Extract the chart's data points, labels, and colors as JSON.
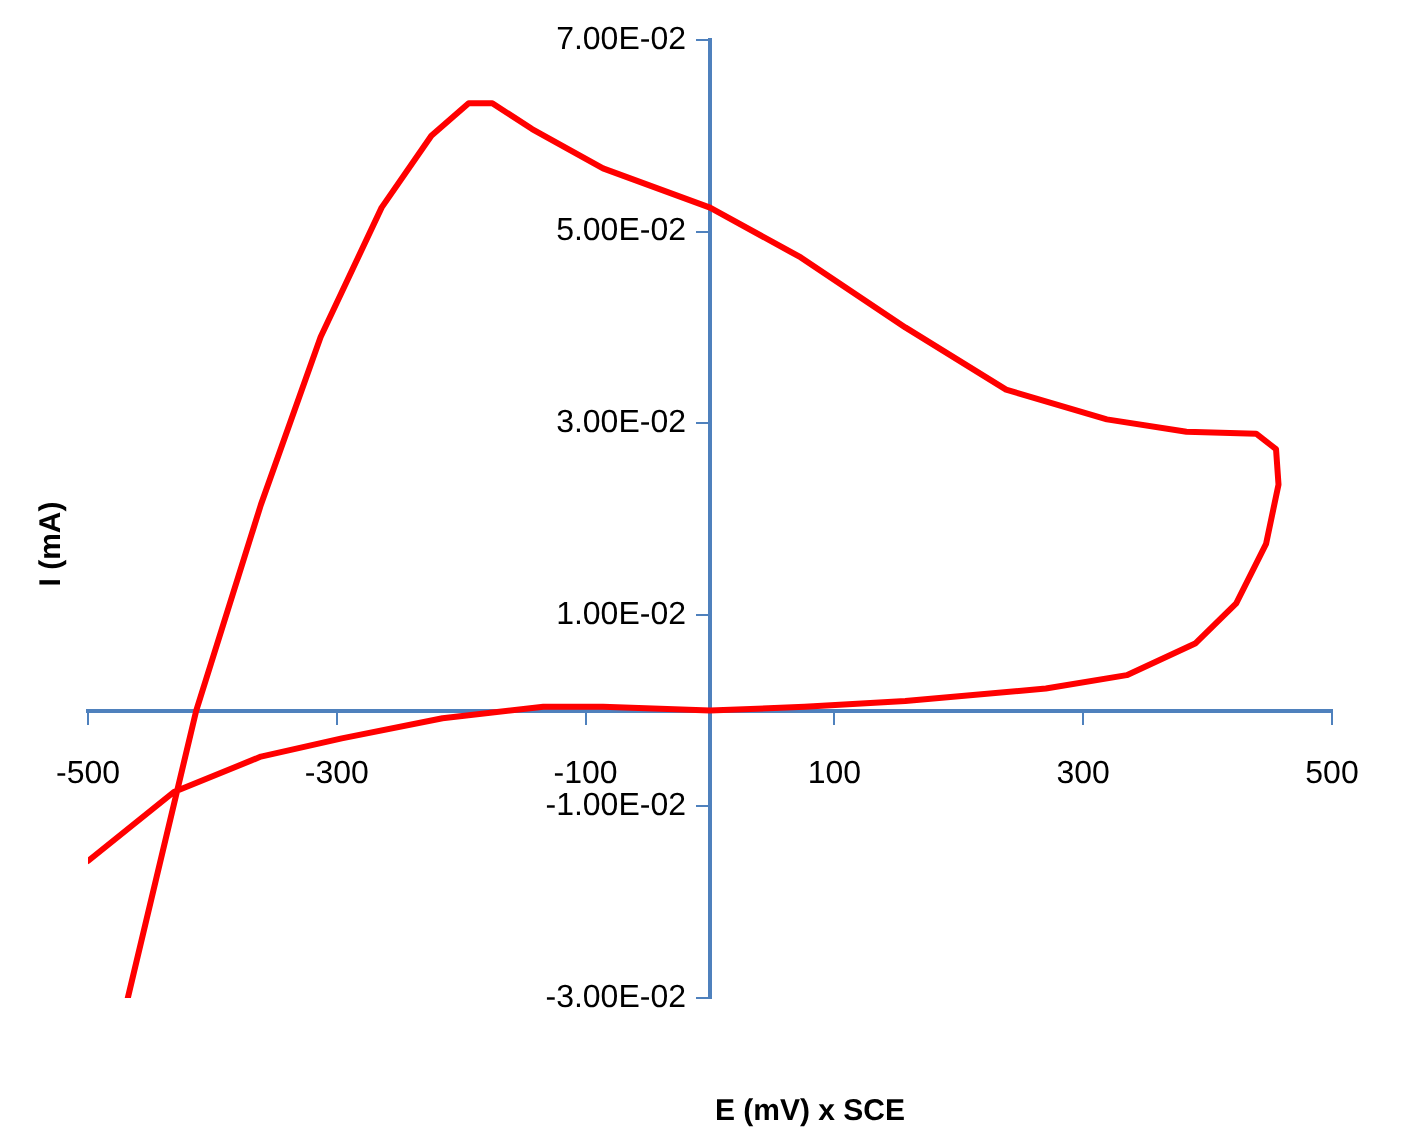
{
  "chart_data": {
    "type": "line",
    "xlabel": "E (mV) x SCE",
    "ylabel": "I (mA)",
    "xlim": [
      -500,
      500
    ],
    "xticks": [
      -500,
      -300,
      -100,
      100,
      300,
      500
    ],
    "ylim": [
      -0.03,
      0.07
    ],
    "yticks": [
      {
        "value": -0.03,
        "label": "-3.00E-02"
      },
      {
        "value": -0.01,
        "label": "-1.00E-02"
      },
      {
        "value": 0.01,
        "label": "1.00E-02"
      },
      {
        "value": 0.03,
        "label": "3.00E-02"
      },
      {
        "value": 0.05,
        "label": "5.00E-02"
      },
      {
        "value": 0.07,
        "label": "7.00E-02"
      }
    ],
    "grid": false,
    "legend": false,
    "marker": "none",
    "line_style": "solid",
    "series": [
      {
        "color": "#ff0000",
        "x": [
          -468,
          -413,
          -361,
          -313,
          -264,
          -224,
          -194,
          -175,
          -143,
          -86,
          0,
          73,
          157,
          238,
          319,
          383,
          439,
          455,
          457,
          447,
          423,
          390,
          335,
          270,
          157,
          76,
          0,
          -86,
          -134,
          -215,
          -296,
          -361,
          -431,
          -500
        ],
        "values": [
          -0.03,
          0,
          0.0215,
          0.039,
          0.0525,
          0.06,
          0.0634,
          0.0634,
          0.0607,
          0.0566,
          0.0525,
          0.0473,
          0.04,
          0.0335,
          0.0304,
          0.0291,
          0.0289,
          0.0273,
          0.0236,
          0.0174,
          0.0112,
          0.007,
          0.0037,
          0.0023,
          0.001,
          0.0004,
          0,
          0.0004,
          0.0004,
          -0.0008,
          -0.0029,
          -0.0048,
          -0.0085,
          -0.0157
        ]
      }
    ]
  }
}
